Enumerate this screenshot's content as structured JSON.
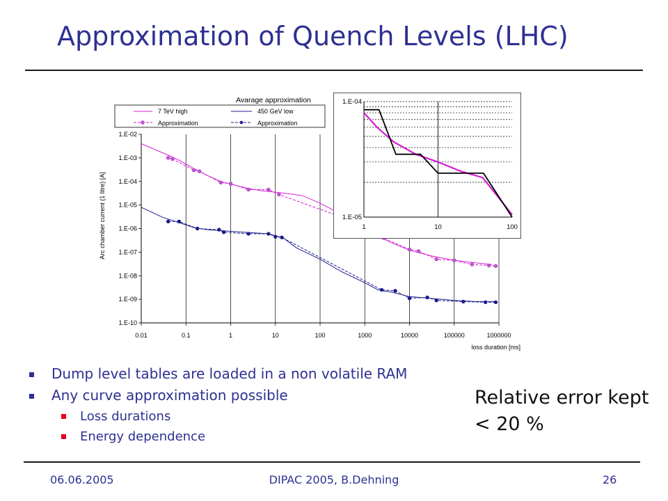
{
  "slide": {
    "title": "Approximation of Quench Levels (LHC)",
    "bullets": [
      {
        "text": "Dump level tables are loaded in a non volatile RAM",
        "level": 1
      },
      {
        "text": "Any curve approximation possible",
        "level": 1
      },
      {
        "text": "Loss durations",
        "level": 2
      },
      {
        "text": "Energy dependence",
        "level": 2
      }
    ],
    "side_note": [
      "Relative error kept",
      "< 20 %"
    ],
    "footer": {
      "date": "06.06.2005",
      "center": "DIPAC 2005, B.Dehning",
      "page": "26"
    }
  },
  "colors": {
    "title": "#2e3092",
    "high": "#d41fd4",
    "low": "#1c1c8c",
    "inset_approx": "#000000",
    "grid": "#000000"
  },
  "chart_data": [
    {
      "type": "line",
      "title": "Avarage approximation",
      "xlabel": "loss duration [ms]",
      "ylabel": "Arc chamber current (1 litre) [A]",
      "x_scale": "log",
      "y_scale": "log",
      "xlim": [
        0.01,
        1000000
      ],
      "ylim": [
        1e-10,
        0.01
      ],
      "x_ticks": [
        "0.01",
        "0.1",
        "1",
        "10",
        "100",
        "1000",
        "10000",
        "100000",
        "1000000"
      ],
      "y_ticks": [
        "1.E-10",
        "1.E-09",
        "1.E-08",
        "1.E-07",
        "1.E-06",
        "1.E-05",
        "1.E-04",
        "1.E-03",
        "1.E-02"
      ],
      "grid": "vertical",
      "legend_position": "top",
      "legend": [
        "7 TeV high",
        "450 GeV low",
        "Approximation",
        "Approximation"
      ],
      "series": [
        {
          "name": "7 TeV high",
          "style": "line",
          "color": "#d41fd4",
          "x": [
            0.01,
            0.04,
            0.07,
            0.15,
            0.3,
            0.6,
            1.2,
            2.5,
            5,
            10,
            20,
            40,
            100,
            200,
            400,
            1000,
            2000,
            4000,
            10000,
            30000,
            100000,
            300000,
            700000
          ],
          "y": [
            0.004,
            0.0013,
            0.0008,
            0.00035,
            0.00018,
            0.0001,
            7e-05,
            5e-05,
            4e-05,
            3.5e-05,
            3e-05,
            2.5e-05,
            1.2e-05,
            6e-06,
            3e-06,
            1.1e-06,
            4.5e-07,
            2.5e-07,
            1.2e-07,
            7e-08,
            4.5e-08,
            3.5e-08,
            3e-08
          ]
        },
        {
          "name": "Approximation",
          "style": "dashed-markers",
          "color": "#d41fd4",
          "x": [
            0.04,
            0.05,
            0.15,
            0.2,
            0.6,
            1,
            2.5,
            7,
            12,
            1600,
            2600,
            10000,
            16000,
            40000,
            100000,
            250000,
            600000,
            850000
          ],
          "y": [
            0.001,
            0.0009,
            0.0003,
            0.00027,
            9e-05,
            8e-05,
            4.5e-05,
            4.5e-05,
            2.8e-05,
            1e-06,
            4e-07,
            1.3e-07,
            1.1e-07,
            5e-08,
            4.5e-08,
            3e-08,
            2.7e-08,
            2.6e-08
          ]
        },
        {
          "name": "450 GeV low",
          "style": "line",
          "color": "#1c1c8c",
          "x": [
            0.01,
            0.03,
            0.07,
            0.15,
            0.3,
            0.7,
            2,
            7,
            15,
            30,
            100,
            300,
            1000,
            2000,
            4000,
            10000,
            30000,
            100000,
            300000,
            800000
          ],
          "y": [
            8e-06,
            3e-06,
            1.8e-06,
            1.1e-06,
            9e-07,
            8e-07,
            7e-07,
            6e-07,
            4e-07,
            1.5e-07,
            5e-08,
            1.5e-08,
            5e-09,
            2.5e-09,
            2e-09,
            1.3e-09,
            1.1e-09,
            9e-10,
            8e-10,
            8e-10
          ]
        },
        {
          "name": "Approximation",
          "style": "dashed-markers",
          "color": "#1c1c8c",
          "x": [
            0.04,
            0.07,
            0.18,
            0.55,
            0.7,
            2.5,
            7,
            10,
            14,
            2400,
            4800,
            10000,
            25000,
            40000,
            160000,
            500000,
            850000
          ],
          "y": [
            2e-06,
            2e-06,
            1e-06,
            9e-07,
            7e-07,
            6e-07,
            6e-07,
            4.5e-07,
            4.2e-07,
            2.5e-09,
            2.3e-09,
            1.1e-09,
            1.2e-09,
            9e-10,
            8e-10,
            7.5e-10,
            7.5e-10
          ]
        }
      ]
    },
    {
      "type": "line",
      "title": "",
      "x_scale": "log",
      "y_scale": "log",
      "xlim": [
        1,
        100
      ],
      "ylim": [
        1e-05,
        0.0001
      ],
      "x_ticks": [
        "1",
        "10",
        "100"
      ],
      "y_ticks": [
        "1.E-05",
        "1.E-04"
      ],
      "grid": "dashed-horizontal",
      "series": [
        {
          "name": "",
          "color": "#d41fd4",
          "x": [
            1,
            1.5,
            2.5,
            5,
            10,
            20,
            40,
            100
          ],
          "y": [
            8e-05,
            6e-05,
            4.5e-05,
            3.5e-05,
            3e-05,
            2.5e-05,
            2.2e-05,
            1.05e-05
          ]
        },
        {
          "name": "",
          "color": "#000000",
          "x": [
            1,
            1.6,
            2.7,
            5.8,
            10,
            41,
            100
          ],
          "y": [
            8.5e-05,
            8.5e-05,
            3.5e-05,
            3.5e-05,
            2.4e-05,
            2.4e-05,
            1e-05
          ]
        }
      ]
    }
  ]
}
